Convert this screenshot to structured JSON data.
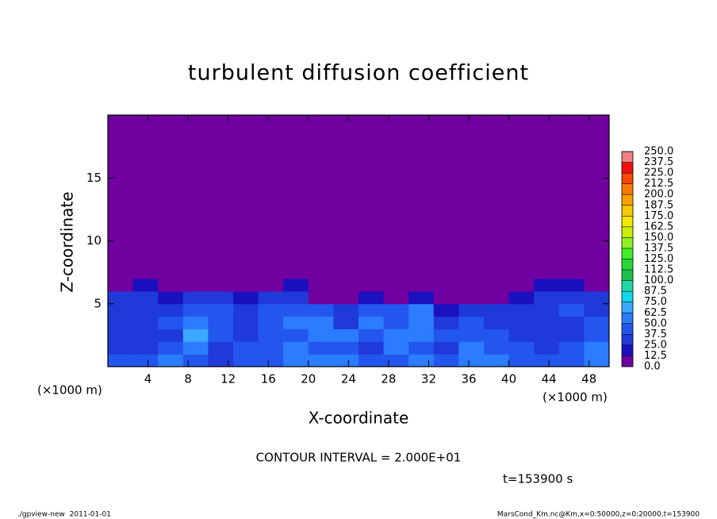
{
  "chart_data": {
    "type": "heatmap",
    "title": "turbulent diffusion coefficient",
    "xlabel": "X-coordinate",
    "ylabel": "Z-coordinate",
    "unit_label": "(×1000 m)",
    "note": "CONTOUR INTERVAL = 2.000E+01",
    "time_label": "t=153900 s",
    "footer_left": "./gpview-new  2011-01-01",
    "footer_right": "MarsCond_Km.nc@Km,x=0:50000,z=0:20000,t=153900",
    "xlim": [
      0,
      50
    ],
    "ylim": [
      0,
      20
    ],
    "xticks": [
      4,
      8,
      12,
      16,
      20,
      24,
      28,
      32,
      36,
      40,
      44,
      48
    ],
    "yticks": [
      5,
      10,
      15
    ],
    "x_edges": [
      0,
      2.5,
      5,
      7.5,
      10,
      12.5,
      15,
      17.5,
      20,
      22.5,
      25,
      27.5,
      30,
      32.5,
      35,
      37.5,
      40,
      42.5,
      45,
      47.5,
      50
    ],
    "z_edges": [
      0,
      1,
      2,
      3,
      4,
      5,
      6,
      7,
      20
    ],
    "values": [
      [
        45,
        40,
        55,
        40,
        35,
        40,
        45,
        55,
        60,
        50,
        40,
        45,
        50,
        40,
        55,
        50,
        45,
        40,
        45,
        55
      ],
      [
        35,
        30,
        40,
        50,
        35,
        40,
        45,
        55,
        45,
        40,
        35,
        50,
        45,
        35,
        50,
        45,
        40,
        35,
        40,
        50
      ],
      [
        30,
        30,
        35,
        70,
        40,
        35,
        40,
        45,
        50,
        55,
        40,
        55,
        50,
        40,
        45,
        40,
        35,
        30,
        35,
        45
      ],
      [
        35,
        30,
        40,
        60,
        40,
        35,
        40,
        50,
        60,
        35,
        50,
        45,
        55,
        35,
        40,
        30,
        35,
        30,
        30,
        40
      ],
      [
        30,
        30,
        35,
        45,
        40,
        35,
        40,
        45,
        40,
        30,
        45,
        40,
        50,
        20,
        30,
        30,
        30,
        35,
        40,
        30
      ],
      [
        25,
        30,
        20,
        25,
        25,
        20,
        25,
        30,
        10,
        5,
        20,
        10,
        15,
        5,
        10,
        10,
        20,
        30,
        30,
        25
      ],
      [
        10,
        15,
        5,
        5,
        5,
        5,
        10,
        15,
        0,
        0,
        5,
        0,
        5,
        0,
        0,
        5,
        5,
        15,
        15,
        10
      ],
      [
        0,
        0,
        0,
        0,
        0,
        0,
        0,
        0,
        0,
        0,
        0,
        0,
        0,
        0,
        0,
        0,
        0,
        0,
        0,
        0
      ]
    ],
    "colorbar_levels": [
      {
        "value": 0,
        "label": "0.0"
      },
      {
        "value": 12.5,
        "label": "12.5"
      },
      {
        "value": 25,
        "label": "25.0"
      },
      {
        "value": 37.5,
        "label": "37.5"
      },
      {
        "value": 50,
        "label": "50.0"
      },
      {
        "value": 62.5,
        "label": "62.5"
      },
      {
        "value": 75,
        "label": "75.0"
      },
      {
        "value": 87.5,
        "label": "87.5"
      },
      {
        "value": 100,
        "label": "100.0"
      },
      {
        "value": 112.5,
        "label": "112.5"
      },
      {
        "value": 125,
        "label": "125.0"
      },
      {
        "value": 137.5,
        "label": "137.5"
      },
      {
        "value": 150,
        "label": "150.0"
      },
      {
        "value": 162.5,
        "label": "162.5"
      },
      {
        "value": 175,
        "label": "175.0"
      },
      {
        "value": 187.5,
        "label": "187.5"
      },
      {
        "value": 200,
        "label": "200.0"
      },
      {
        "value": 212.5,
        "label": "212.5"
      },
      {
        "value": 225,
        "label": "225.0"
      },
      {
        "value": 237.5,
        "label": "237.5"
      },
      {
        "value": 250,
        "label": "250.0"
      }
    ],
    "colors": [
      "#7000a0",
      "#1a10c0",
      "#1f3ad8",
      "#2356ee",
      "#2c7cff",
      "#3aa8ff",
      "#10d8e8",
      "#20d8a8",
      "#20c050",
      "#28d838",
      "#40ec28",
      "#90f020",
      "#c8f000",
      "#f0e800",
      "#f8c800",
      "#f8a000",
      "#f87800",
      "#f84800",
      "#f01010",
      "#f08080"
    ],
    "grid": false
  }
}
